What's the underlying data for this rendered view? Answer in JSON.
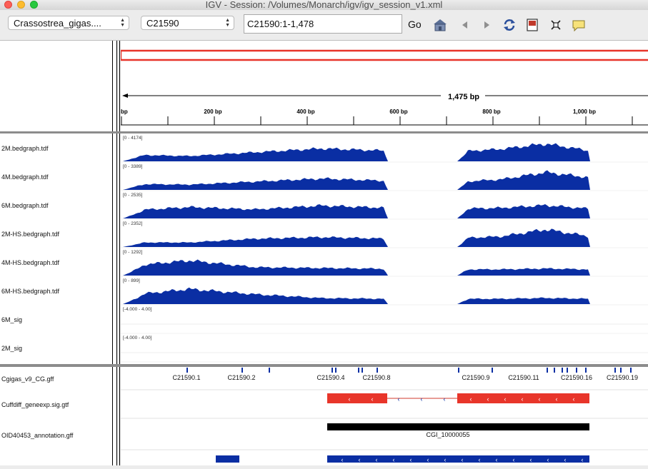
{
  "window": {
    "title": "IGV - Session: /Volumes/Monarch/igv/igv_session_v1.xml"
  },
  "toolbar": {
    "genome": "Crassostrea_gigas....",
    "chromosome": "C21590",
    "locus": "C21590:1-1,478",
    "go_label": "Go"
  },
  "ruler": {
    "span_label": "1,475 bp",
    "ticks": [
      "bp",
      "200 bp",
      "400 bp",
      "600 bp",
      "800 bp",
      "1,000 bp"
    ]
  },
  "tracks": [
    {
      "name": "2M.bedgraph.tdf",
      "range": "[0 - 4174]"
    },
    {
      "name": "4M.bedgraph.tdf",
      "range": "[0 - 3389]"
    },
    {
      "name": "6M.bedgraph.tdf",
      "range": "[0 - 2535]"
    },
    {
      "name": "2M-HS.bedgraph.tdf",
      "range": "[0 - 2352]"
    },
    {
      "name": "4M-HS.bedgraph.tdf",
      "range": "[0 - 1292]"
    },
    {
      "name": "6M-HS.bedgraph.tdf",
      "range": "[0 - 899]"
    },
    {
      "name": "6M_sig",
      "range": "[-4.000 - 4.00]"
    },
    {
      "name": "2M_sig",
      "range": "[-4.000 - 4.00]"
    }
  ],
  "feature_tracks": {
    "gff": {
      "name": "Cgigas_v9_CG.gff",
      "labels": [
        "C21590.1",
        "C21590.2",
        "C21590.4",
        "C21590.8",
        "C21590.9",
        "C21590.11",
        "C21590.16",
        "C21590.19"
      ]
    },
    "cuffdiff": {
      "name": "Cuffdiff_geneexp.sig.gtf"
    },
    "annotation": {
      "name": "OID40453_annotation.gff",
      "feature_label": "CGI_10000055"
    }
  },
  "colors": {
    "coverage": "#0a2ea3",
    "ideogram_box": "#e8352a",
    "gene": "#e8352a",
    "annotation": "#000000",
    "accent_blue": "#0a2ea3"
  }
}
